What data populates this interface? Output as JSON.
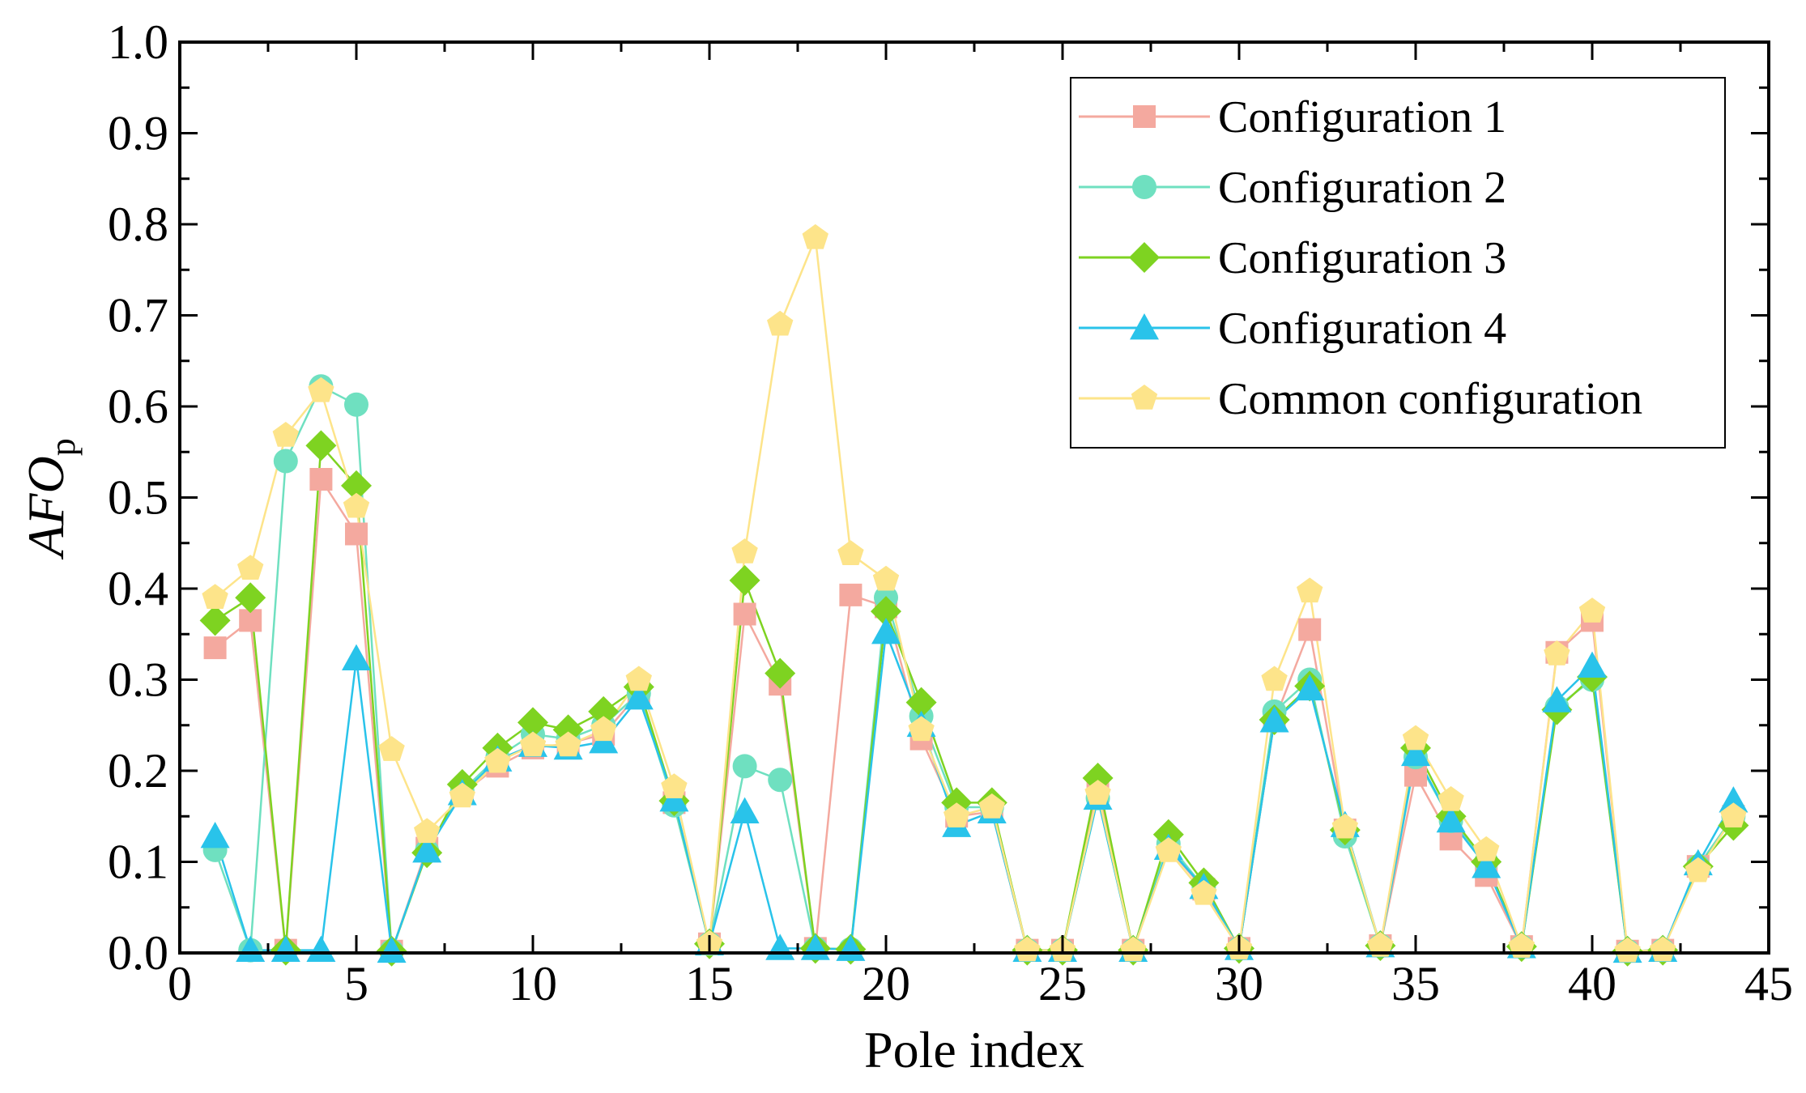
{
  "chart_data": {
    "type": "line",
    "title": "",
    "xlabel": "Pole index",
    "ylabel_main": "AFO",
    "ylabel_sub": "p",
    "xlim": [
      0,
      45
    ],
    "ylim": [
      0.0,
      1.0
    ],
    "x_ticks": [
      0,
      5,
      10,
      15,
      20,
      25,
      30,
      35,
      40,
      45
    ],
    "x_tick_labels": [
      "0",
      "5",
      "10",
      "15",
      "20",
      "25",
      "30",
      "35",
      "40",
      "45"
    ],
    "y_ticks": [
      0.0,
      0.1,
      0.2,
      0.3,
      0.4,
      0.5,
      0.6,
      0.7,
      0.8,
      0.9,
      1.0
    ],
    "y_tick_labels": [
      "0.0",
      "0.1",
      "0.2",
      "0.3",
      "0.4",
      "0.5",
      "0.6",
      "0.7",
      "0.8",
      "0.9",
      "1.0"
    ],
    "grid": false,
    "legend_position": "top-right",
    "x": [
      1,
      2,
      3,
      4,
      5,
      6,
      7,
      8,
      9,
      10,
      11,
      12,
      13,
      14,
      15,
      16,
      17,
      18,
      19,
      20,
      21,
      22,
      23,
      24,
      25,
      26,
      27,
      28,
      29,
      30,
      31,
      32,
      33,
      34,
      35,
      36,
      37,
      38,
      39,
      40,
      41,
      42,
      43,
      44
    ],
    "series": [
      {
        "name": "Configuration 1",
        "color": "#f4a99f",
        "marker": "square",
        "values": [
          0.335,
          0.365,
          0.003,
          0.52,
          0.46,
          0.002,
          0.115,
          0.175,
          0.205,
          0.225,
          0.23,
          0.24,
          0.285,
          0.165,
          0.01,
          0.372,
          0.295,
          0.005,
          0.393,
          0.38,
          0.235,
          0.15,
          0.155,
          0.003,
          0.003,
          0.18,
          0.003,
          0.115,
          0.07,
          0.005,
          0.255,
          0.355,
          0.135,
          0.008,
          0.195,
          0.125,
          0.085,
          0.007,
          0.33,
          0.365,
          0.002,
          0.003,
          0.095,
          0.15
        ]
      },
      {
        "name": "Configuration 2",
        "color": "#6fe0c0",
        "marker": "circle",
        "values": [
          0.113,
          0.003,
          0.54,
          0.622,
          0.602,
          0.002,
          0.112,
          0.178,
          0.215,
          0.24,
          0.235,
          0.25,
          0.285,
          0.162,
          0.01,
          0.205,
          0.19,
          0.005,
          0.004,
          0.39,
          0.26,
          0.16,
          0.16,
          0.003,
          0.003,
          0.17,
          0.003,
          0.12,
          0.072,
          0.005,
          0.265,
          0.3,
          0.128,
          0.008,
          0.215,
          0.145,
          0.1,
          0.007,
          0.27,
          0.3,
          0.002,
          0.003,
          0.095,
          0.15
        ]
      },
      {
        "name": "Configuration 3",
        "color": "#7ed321",
        "marker": "diamond",
        "values": [
          0.365,
          0.39,
          0.003,
          0.557,
          0.513,
          0.002,
          0.11,
          0.185,
          0.225,
          0.253,
          0.245,
          0.265,
          0.292,
          0.167,
          0.01,
          0.409,
          0.307,
          0.005,
          0.004,
          0.375,
          0.275,
          0.165,
          0.165,
          0.003,
          0.003,
          0.192,
          0.003,
          0.13,
          0.077,
          0.005,
          0.256,
          0.293,
          0.135,
          0.008,
          0.225,
          0.15,
          0.1,
          0.007,
          0.267,
          0.303,
          0.002,
          0.003,
          0.095,
          0.14
        ]
      },
      {
        "name": "Configuration 4",
        "color": "#29c3ea",
        "marker": "triangle",
        "values": [
          0.128,
          0.003,
          0.003,
          0.003,
          0.323,
          0.002,
          0.112,
          0.175,
          0.212,
          0.228,
          0.225,
          0.232,
          0.28,
          0.168,
          0.01,
          0.155,
          0.005,
          0.005,
          0.004,
          0.352,
          0.25,
          0.14,
          0.155,
          0.003,
          0.003,
          0.17,
          0.003,
          0.115,
          0.072,
          0.005,
          0.255,
          0.29,
          0.14,
          0.008,
          0.218,
          0.145,
          0.095,
          0.007,
          0.277,
          0.315,
          0.002,
          0.003,
          0.098,
          0.167
        ]
      },
      {
        "name": "Common configuration",
        "color": "#fde48a",
        "marker": "pentagon",
        "values": [
          0.39,
          0.422,
          0.568,
          0.617,
          0.49,
          0.223,
          0.133,
          0.172,
          0.21,
          0.228,
          0.228,
          0.245,
          0.3,
          0.182,
          0.01,
          0.44,
          0.69,
          0.785,
          0.438,
          0.41,
          0.245,
          0.15,
          0.16,
          0.003,
          0.003,
          0.175,
          0.003,
          0.112,
          0.065,
          0.005,
          0.3,
          0.397,
          0.138,
          0.008,
          0.235,
          0.168,
          0.113,
          0.007,
          0.328,
          0.375,
          0.002,
          0.003,
          0.09,
          0.15
        ]
      }
    ]
  }
}
